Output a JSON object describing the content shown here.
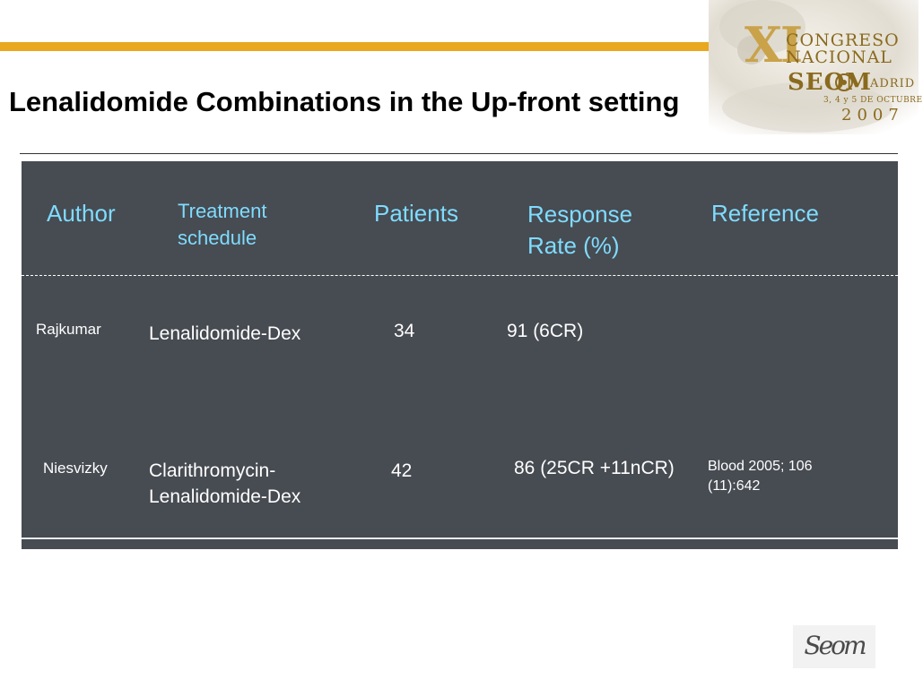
{
  "slide": {
    "title": "Lenalidomide Combinations in the Up-front setting"
  },
  "logo": {
    "numeral": "XI",
    "line1": "CONGRESO",
    "line2": "NACIONAL",
    "seom": "SEOM",
    "city": "ADRID",
    "date": "3, 4 y 5 DE OCTUBRE",
    "year": "2007"
  },
  "table": {
    "headers": {
      "author": "Author",
      "treatment": "Treatment schedule",
      "patients": "Patients",
      "response": "Response Rate (%)",
      "reference": "Reference"
    },
    "rows": [
      {
        "author": "Rajkumar",
        "schedule": "Lenalidomide-Dex",
        "patients": "34",
        "response": "91 (6CR)",
        "reference": ""
      },
      {
        "author": "Niesvizky",
        "schedule": "Clarithromycin-Lenalidomide-Dex",
        "patients": "42",
        "response": "86 (25CR +11nCR)",
        "reference": "Blood 2005; 106 (11):642"
      }
    ]
  },
  "footer_logo": {
    "text": "Seom"
  },
  "colors": {
    "accent_bar": "#e8a820",
    "table_bg": "#474b52",
    "header_text": "#7fdcff",
    "cell_text": "#ffffff",
    "logo_gold": "#c9a24a"
  }
}
